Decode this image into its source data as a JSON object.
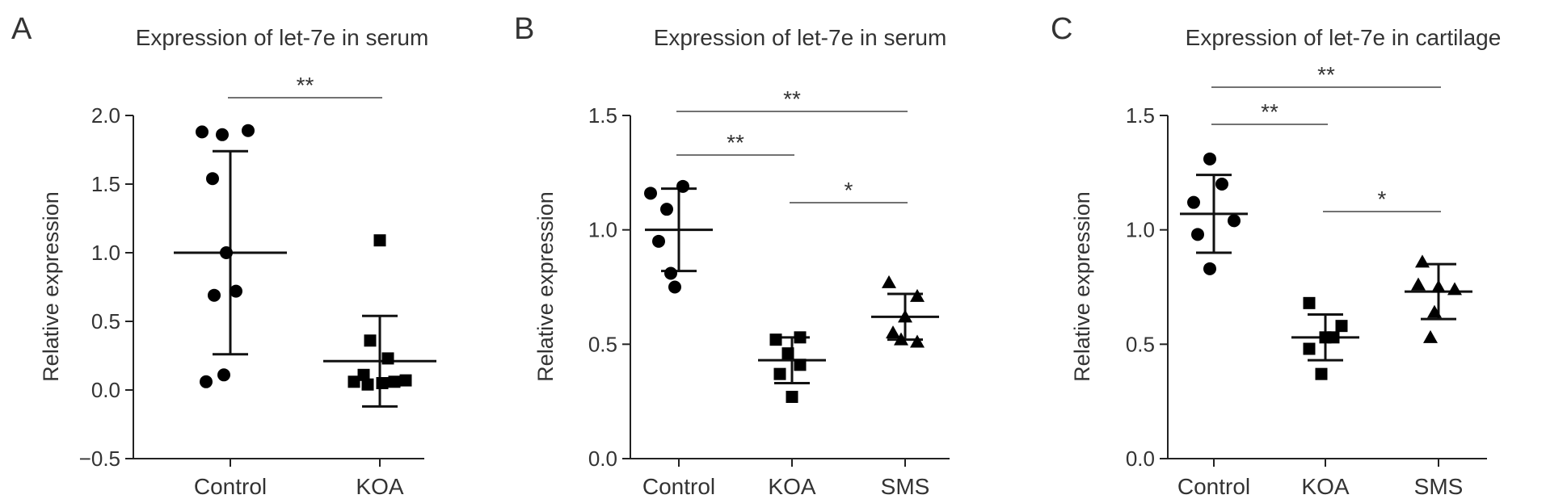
{
  "figure_title": "",
  "chart_data": [
    {
      "panel_label": "A",
      "type": "scatter",
      "title": "Expression of let-7e in serum",
      "xlabel": "",
      "ylabel": "Relative expression",
      "categories": [
        "Control",
        "KOA"
      ],
      "ylim": [
        -0.5,
        2.0
      ],
      "yticks": [
        -0.5,
        0.0,
        0.5,
        1.0,
        1.5,
        2.0
      ],
      "ytick_labels": [
        "−0.5",
        "0.0",
        "0.5",
        "1.0",
        "1.5",
        "2.0"
      ],
      "grid": false,
      "series": [
        {
          "category": "Control",
          "marker": "circle",
          "values": [
            1.88,
            1.86,
            1.89,
            1.54,
            1.0,
            0.69,
            0.72,
            0.06,
            0.11
          ],
          "mean": 1.0,
          "sd_low": 0.26,
          "sd_high": 1.74
        },
        {
          "category": "KOA",
          "marker": "square",
          "values": [
            1.09,
            0.36,
            0.23,
            0.11,
            0.06,
            0.04,
            0.05,
            0.06,
            0.07
          ],
          "mean": 0.21,
          "sd_low": -0.12,
          "sd_high": 0.54
        }
      ],
      "significance": [
        {
          "from": "Control",
          "to": "KOA",
          "label": "**"
        }
      ]
    },
    {
      "panel_label": "B",
      "type": "scatter",
      "title": "Expression of let-7e in serum",
      "xlabel": "",
      "ylabel": "Relative expression",
      "categories": [
        "Control",
        "KOA",
        "SMS"
      ],
      "ylim": [
        0.0,
        1.5
      ],
      "yticks": [
        0.0,
        0.5,
        1.0,
        1.5
      ],
      "ytick_labels": [
        "0.0",
        "0.5",
        "1.0",
        "1.5"
      ],
      "grid": false,
      "series": [
        {
          "category": "Control",
          "marker": "circle",
          "values": [
            1.16,
            1.19,
            1.09,
            0.95,
            0.81,
            0.75
          ],
          "mean": 1.0,
          "sd_low": 0.82,
          "sd_high": 1.18
        },
        {
          "category": "KOA",
          "marker": "square",
          "values": [
            0.52,
            0.53,
            0.46,
            0.41,
            0.37,
            0.27
          ],
          "mean": 0.43,
          "sd_low": 0.33,
          "sd_high": 0.53
        },
        {
          "category": "SMS",
          "marker": "triangle",
          "values": [
            0.77,
            0.71,
            0.62,
            0.55,
            0.52,
            0.51
          ],
          "mean": 0.62,
          "sd_low": 0.52,
          "sd_high": 0.72
        }
      ],
      "significance": [
        {
          "from": "Control",
          "to": "SMS",
          "label": "**"
        },
        {
          "from": "Control",
          "to": "KOA",
          "label": "**"
        },
        {
          "from": "KOA",
          "to": "SMS",
          "label": "*"
        }
      ]
    },
    {
      "panel_label": "C",
      "type": "scatter",
      "title": "Expression of let-7e in cartilage",
      "xlabel": "",
      "ylabel": "Relative expression",
      "categories": [
        "Control",
        "KOA",
        "SMS"
      ],
      "ylim": [
        0.0,
        1.5
      ],
      "yticks": [
        0.0,
        0.5,
        1.0,
        1.5
      ],
      "ytick_labels": [
        "0.0",
        "0.5",
        "1.0",
        "1.5"
      ],
      "grid": false,
      "series": [
        {
          "category": "Control",
          "marker": "circle",
          "values": [
            1.31,
            1.2,
            1.12,
            1.04,
            0.98,
            0.83
          ],
          "mean": 1.07,
          "sd_low": 0.9,
          "sd_high": 1.24
        },
        {
          "category": "KOA",
          "marker": "square",
          "values": [
            0.68,
            0.58,
            0.53,
            0.53,
            0.48,
            0.37
          ],
          "mean": 0.53,
          "sd_low": 0.43,
          "sd_high": 0.63
        },
        {
          "category": "SMS",
          "marker": "triangle",
          "values": [
            0.86,
            0.75,
            0.76,
            0.74,
            0.64,
            0.53
          ],
          "mean": 0.73,
          "sd_low": 0.61,
          "sd_high": 0.85
        }
      ],
      "significance": [
        {
          "from": "Control",
          "to": "SMS",
          "label": "**"
        },
        {
          "from": "Control",
          "to": "KOA",
          "label": "**"
        },
        {
          "from": "KOA",
          "to": "SMS",
          "label": "*"
        }
      ]
    }
  ]
}
